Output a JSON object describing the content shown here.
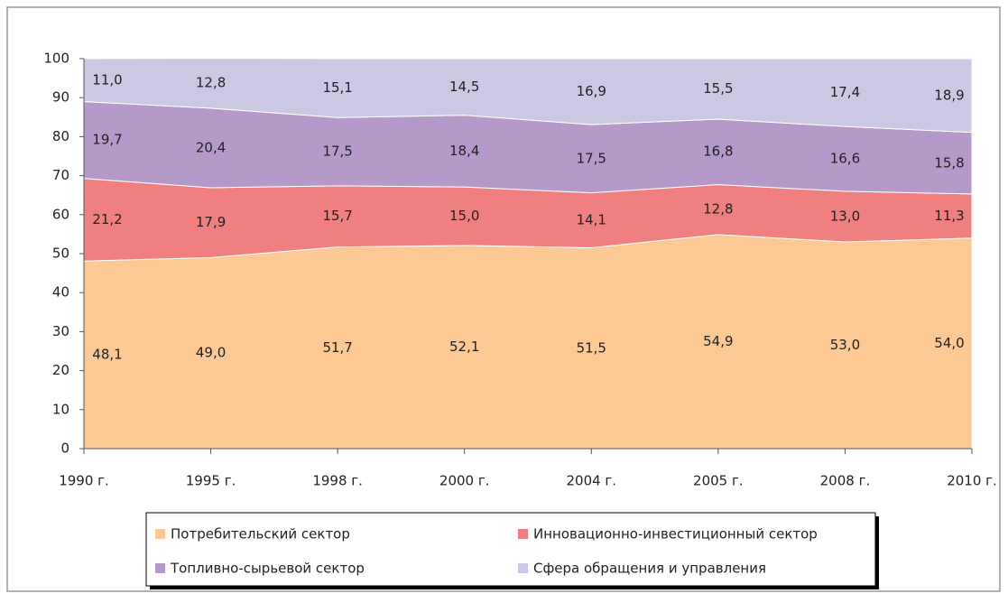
{
  "chart_data": {
    "type": "stacked-area",
    "categories": [
      "1990 г.",
      "1995 г.",
      "1998 г.",
      "2000 г.",
      "2004 г.",
      "2005 г.",
      "2008 г.",
      "2010 г."
    ],
    "series": [
      {
        "name": "Потребительский сектор",
        "color": "#fcc994",
        "values": [
          48.1,
          49.0,
          51.7,
          52.1,
          51.5,
          54.9,
          53.0,
          54.0
        ],
        "value_labels": [
          "48,1",
          "49,0",
          "51,7",
          "52,1",
          "51,5",
          "54,9",
          "53,0",
          "54,0"
        ]
      },
      {
        "name": "Инновационно-инвестиционный сектор",
        "color": "#f08080",
        "values": [
          21.2,
          17.9,
          15.7,
          15.0,
          14.1,
          12.8,
          13.0,
          11.3
        ],
        "value_labels": [
          "21,2",
          "17,9",
          "15,7",
          "15,0",
          "14,1",
          "12,8",
          "13,0",
          "11,3"
        ]
      },
      {
        "name": "Топливно-сырьевой сектор",
        "color": "#b59ac9",
        "values": [
          19.7,
          20.4,
          17.5,
          18.4,
          17.5,
          16.8,
          16.6,
          15.8
        ],
        "value_labels": [
          "19,7",
          "20,4",
          "17,5",
          "18,4",
          "17,5",
          "16,8",
          "16,6",
          "15,8"
        ]
      },
      {
        "name": "Сфера обращения и управления",
        "color": "#ccc8e3",
        "values": [
          11.0,
          12.8,
          15.1,
          14.5,
          16.9,
          15.5,
          17.4,
          18.9
        ],
        "value_labels": [
          "11,0",
          "12,8",
          "15,1",
          "14,5",
          "16,9",
          "15,5",
          "17,4",
          "18,9"
        ]
      }
    ],
    "ylim": [
      0,
      100
    ],
    "yticks": [
      0,
      10,
      20,
      30,
      40,
      50,
      60,
      70,
      80,
      90,
      100
    ],
    "grid": false,
    "legend": "bottom"
  }
}
